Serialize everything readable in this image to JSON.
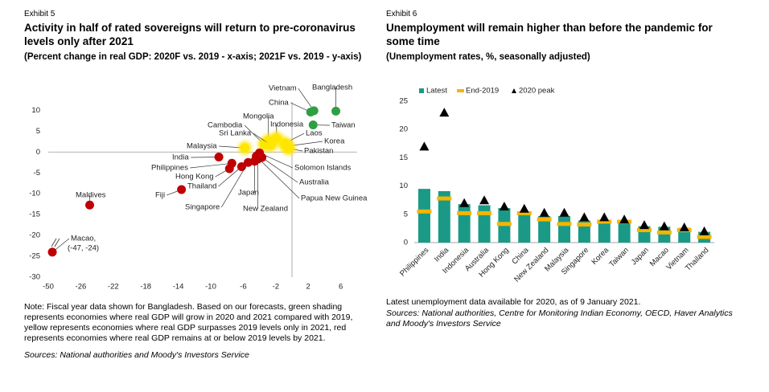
{
  "chart_data": [
    {
      "type": "scatter",
      "exhibit": "Exhibit 5",
      "title": "Activity in half of rated sovereigns will return to pre-coronavirus levels only after 2021",
      "subtitle": "(Percent change in real GDP: 2020F vs. 2019 - x-axis; 2021F vs. 2019 - y-axis)",
      "note": "Note: Fiscal year data shown for Bangladesh. Based on our forecasts, green shading represents economies where real GDP will grow in 2020 and 2021 compared with 2019, yellow represents economies where real GDP surpasses 2019 levels only in 2021, red represents economies where real GDP remains at or below 2019 levels by 2021.",
      "source": "Sources: National authorities and Moody's Investors Service",
      "xlim": [
        -50,
        8
      ],
      "xticks": [
        -50,
        -26,
        -22,
        -18,
        -14,
        -10,
        -6,
        -2,
        2,
        6
      ],
      "x_axis_break": true,
      "ylim": [
        -30,
        12
      ],
      "yticks": [
        10,
        5,
        0,
        -5,
        -10,
        -15,
        -20,
        -25,
        -30
      ],
      "annotation": "(-47, -24)",
      "series": [
        {
          "color": "#2ea043",
          "labels": [
            "Vietnam",
            "Bangladesh",
            "China",
            "Taiwan"
          ],
          "x": [
            2.7,
            5.4,
            2.3,
            2.6
          ],
          "values": [
            9.9,
            9.8,
            9.6,
            6.5
          ]
        },
        {
          "color": "#ffe600",
          "labels": [
            "Mongolia",
            "Indonesia",
            "Cambodia",
            "Sri Lanka",
            "Laos",
            "Korea",
            "Pakistan",
            "Malaysia"
          ],
          "x": [
            -2.9,
            -1.9,
            -3.4,
            -2.6,
            -0.9,
            -0.6,
            -0.4,
            -5.8
          ],
          "values": [
            2.7,
            3.3,
            1.8,
            1.7,
            2.1,
            1.4,
            0.9,
            1.0
          ]
        },
        {
          "color": "#c00000",
          "labels": [
            "India",
            "Philippines",
            "Hong Kong",
            "Thailand",
            "Singapore",
            "Japan",
            "New Zealand",
            "Solomon Islands",
            "Australia",
            "Papua New Guinea",
            "Fiji",
            "Maldives",
            "Macao,"
          ],
          "x": [
            -9.0,
            -7.4,
            -7.7,
            -6.2,
            -5.4,
            -4.6,
            -4.2,
            -4.0,
            -3.7,
            -4.4,
            -13.6,
            -24.9,
            -47
          ],
          "values": [
            -1.2,
            -2.7,
            -4.0,
            -3.5,
            -2.5,
            -2.2,
            -1.7,
            -0.2,
            -1.3,
            -1.0,
            -9.0,
            -12.7,
            -24
          ]
        }
      ]
    },
    {
      "type": "bar",
      "exhibit": "Exhibit 6",
      "title": "Unemployment will remain higher than before the pandemic for some time",
      "subtitle": "(Unemployment rates, %, seasonally adjusted)",
      "note": "Latest unemployment data available for 2020, as of 9 January 2021.",
      "source": "Sources: National authorities, Centre for Monitoring Indian Economy, OECD, Haver Analytics and Moody's Investors Service",
      "categories": [
        "Philippines",
        "India",
        "Indonesia",
        "Australia",
        "Hong Kong",
        "China",
        "New Zealand",
        "Malaysia",
        "Singapore",
        "Korea",
        "Taiwan",
        "Japan",
        "Macao",
        "Vietnam",
        "Thailand"
      ],
      "ylim": [
        0,
        25
      ],
      "yticks": [
        0,
        5,
        10,
        15,
        20,
        25
      ],
      "legend": "top-left",
      "series": [
        {
          "name": "Latest",
          "mark": "bar",
          "color": "#1a9a86",
          "values": [
            9.5,
            9.1,
            6.8,
            6.6,
            6.1,
            5.0,
            4.7,
            4.7,
            3.9,
            3.7,
            3.8,
            2.9,
            2.8,
            2.6,
            1.9
          ]
        },
        {
          "name": "End-2019",
          "mark": "dash",
          "color": "#f7b500",
          "values": [
            5.5,
            7.8,
            5.2,
            5.2,
            3.3,
            5.2,
            4.1,
            3.3,
            3.2,
            3.7,
            3.7,
            2.2,
            1.8,
            2.2,
            1.0
          ]
        },
        {
          "name": "2020 peak",
          "mark": "triangle",
          "color": "#000000",
          "values": [
            17.0,
            23.0,
            7.0,
            7.5,
            6.4,
            6.0,
            5.3,
            5.3,
            4.5,
            4.5,
            4.1,
            3.1,
            2.9,
            2.7,
            2.0
          ]
        }
      ]
    }
  ]
}
